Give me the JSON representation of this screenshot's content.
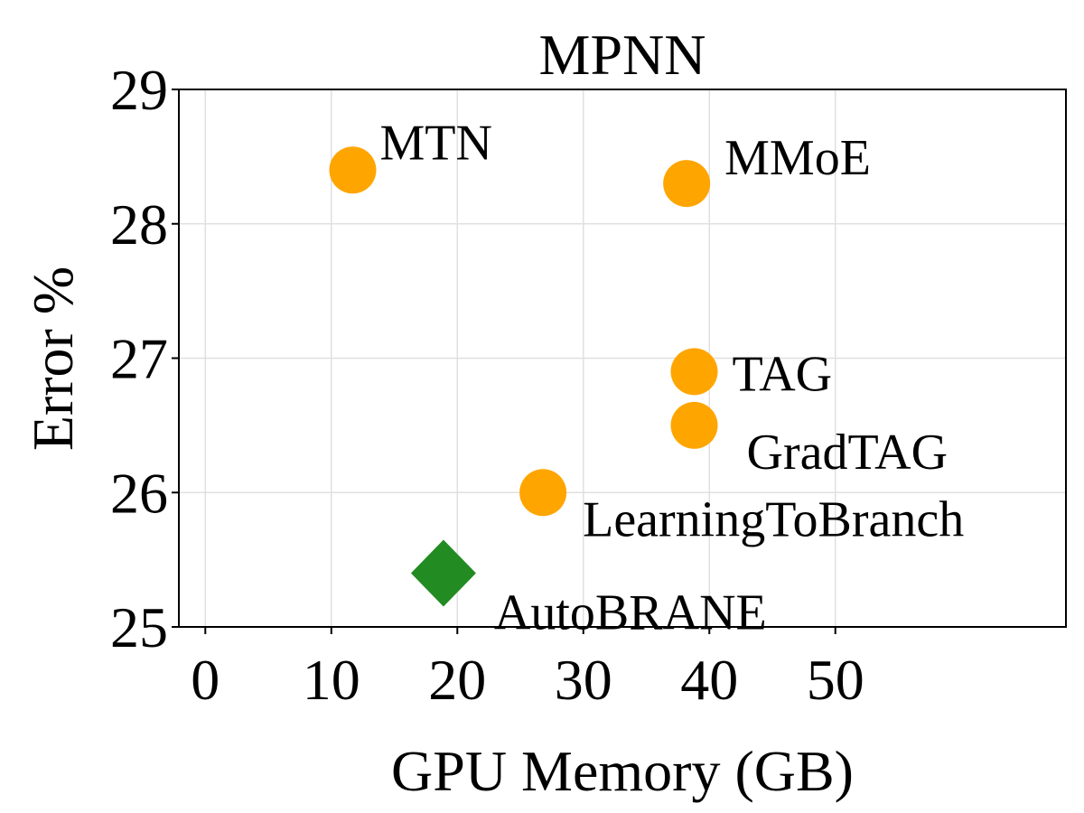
{
  "chart_data": {
    "type": "scatter",
    "title": "MPNN",
    "xlabel": "GPU Memory (GB)",
    "ylabel": "Error %",
    "xlim": [
      -2.1,
      68.3
    ],
    "ylim": [
      25,
      29
    ],
    "xticks": [
      0,
      10,
      20,
      30,
      40,
      50
    ],
    "yticks": [
      25,
      26,
      27,
      28,
      29
    ],
    "grid": true,
    "colors": {
      "baseline": "#FFA500",
      "proposed": "#228B22"
    },
    "points": [
      {
        "label": "MTN",
        "x": 11.7,
        "y": 28.4,
        "marker": "circle",
        "color": "#FFA500"
      },
      {
        "label": "MMoE",
        "x": 38.2,
        "y": 28.3,
        "marker": "circle",
        "color": "#FFA500"
      },
      {
        "label": "TAG",
        "x": 38.8,
        "y": 26.9,
        "marker": "circle",
        "color": "#FFA500"
      },
      {
        "label": "GradTAG",
        "x": 38.8,
        "y": 26.5,
        "marker": "circle",
        "color": "#FFA500"
      },
      {
        "label": "LearningToBranch",
        "x": 26.8,
        "y": 26.0,
        "marker": "circle",
        "color": "#FFA500"
      },
      {
        "label": "AutoBRANE",
        "x": 18.9,
        "y": 25.4,
        "marker": "diamond",
        "color": "#228B22"
      }
    ]
  }
}
